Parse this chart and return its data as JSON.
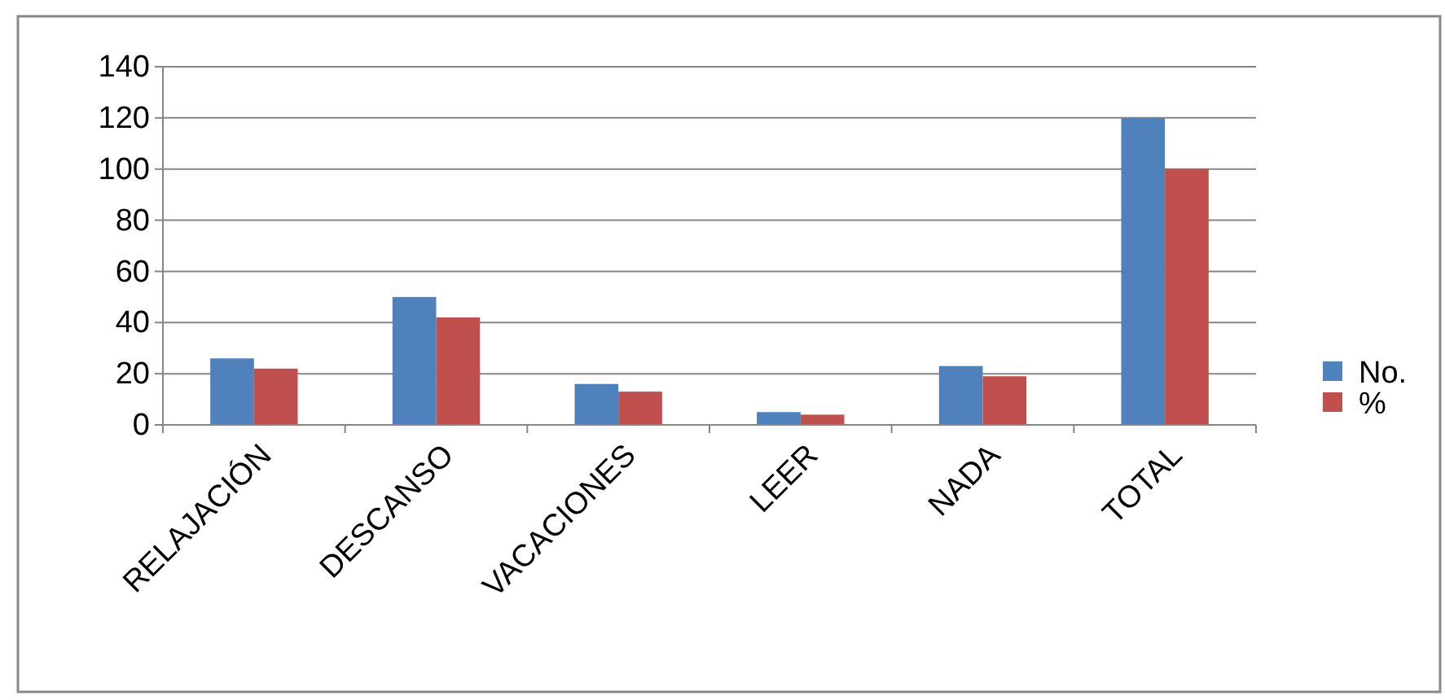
{
  "chart_data": {
    "type": "bar",
    "categories": [
      "RELAJACIÓN",
      "DESCANSO",
      "VACACIONES",
      "LEER",
      "NADA",
      "TOTAL"
    ],
    "series": [
      {
        "name": "No.",
        "color": "#4f81bd",
        "values": [
          26,
          50,
          16,
          5,
          23,
          120
        ]
      },
      {
        "name": "%",
        "color": "#c0504d",
        "values": [
          22,
          42,
          13,
          4,
          19,
          100
        ]
      }
    ],
    "ylim": [
      0,
      140
    ],
    "yticks": [
      0,
      20,
      40,
      60,
      80,
      100,
      120,
      140
    ],
    "grid": "y",
    "legend": "right"
  }
}
